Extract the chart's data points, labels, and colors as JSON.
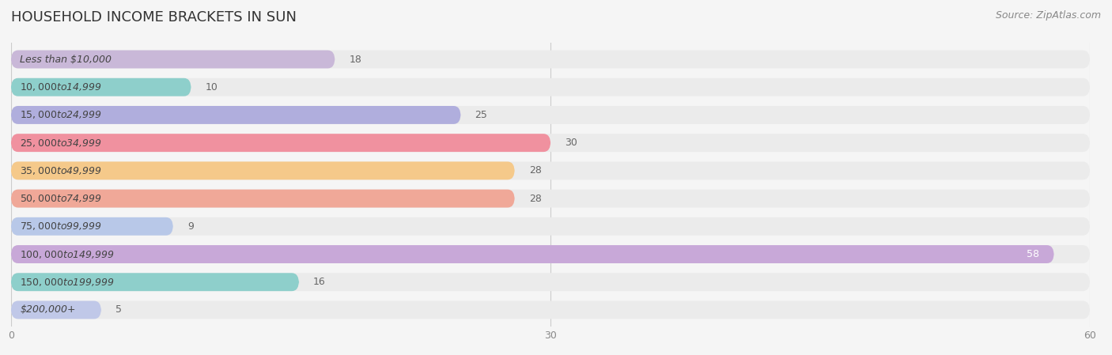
{
  "title": "HOUSEHOLD INCOME BRACKETS IN SUN",
  "source": "Source: ZipAtlas.com",
  "categories": [
    "Less than $10,000",
    "$10,000 to $14,999",
    "$15,000 to $24,999",
    "$25,000 to $34,999",
    "$35,000 to $49,999",
    "$50,000 to $74,999",
    "$75,000 to $99,999",
    "$100,000 to $149,999",
    "$150,000 to $199,999",
    "$200,000+"
  ],
  "values": [
    18,
    10,
    25,
    30,
    28,
    28,
    9,
    58,
    16,
    5
  ],
  "bar_colors": [
    "#c9b8d8",
    "#8ecfcb",
    "#b0aedd",
    "#f0919f",
    "#f5c98a",
    "#f0a898",
    "#b8c8e8",
    "#c8a8d8",
    "#8ecfcb",
    "#c0c8e8"
  ],
  "xlim": [
    0,
    60
  ],
  "xticks": [
    0,
    30,
    60
  ],
  "background_color": "#f5f5f5",
  "bar_background_color": "#ebebeb",
  "title_fontsize": 13,
  "label_fontsize": 9,
  "value_fontsize": 9,
  "source_fontsize": 9,
  "bar_height": 0.62
}
